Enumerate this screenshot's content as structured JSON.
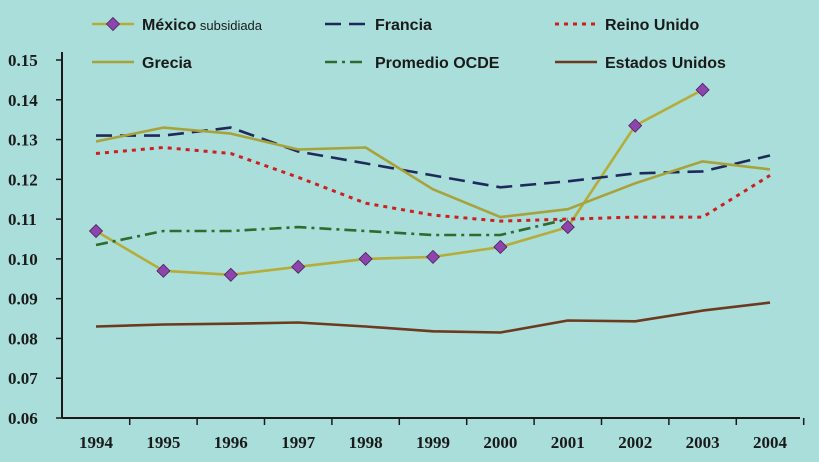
{
  "chart_data": {
    "type": "line",
    "title": "",
    "xlabel": "",
    "ylabel": "",
    "x": [
      "1994",
      "1995",
      "1996",
      "1997",
      "1998",
      "1999",
      "2000",
      "2001",
      "2002",
      "2003",
      "2004"
    ],
    "ylim": [
      0.06,
      0.15
    ],
    "yticks": [
      "0.06",
      "0.07",
      "0.08",
      "0.09",
      "0.10",
      "0.11",
      "0.12",
      "0.13",
      "0.14",
      "0.15"
    ],
    "grid": false,
    "legend": "top",
    "background": "#a9dedb",
    "series": [
      {
        "name": "México",
        "name_suffix": "subsidiada",
        "color": "#b5ad3a",
        "style": "solid",
        "marker": "diamond",
        "marker_color": "#8e44ad",
        "values": [
          0.107,
          0.097,
          0.096,
          0.098,
          0.1,
          0.1005,
          0.103,
          0.108,
          0.1335,
          0.1425,
          null
        ]
      },
      {
        "name": "Francia",
        "color": "#1f2a5a",
        "style": "dash",
        "values": [
          0.131,
          0.131,
          0.133,
          0.127,
          0.124,
          0.121,
          0.118,
          0.1195,
          0.1215,
          0.122,
          0.126
        ]
      },
      {
        "name": "Reino Unido",
        "color": "#cc1f1f",
        "style": "dot",
        "values": [
          0.1265,
          0.128,
          0.1265,
          0.1205,
          0.114,
          0.111,
          0.1095,
          0.11,
          0.1105,
          0.1105,
          0.121
        ]
      },
      {
        "name": "Grecia",
        "color": "#a8a23a",
        "style": "solid",
        "values": [
          0.1295,
          0.133,
          0.1315,
          0.1275,
          0.128,
          0.1175,
          0.1105,
          0.1125,
          0.119,
          0.1245,
          0.1225
        ]
      },
      {
        "name": "Promedio OCDE",
        "color": "#2e6b2e",
        "style": "dashdot",
        "values": [
          0.1035,
          0.107,
          0.107,
          0.108,
          0.107,
          0.106,
          0.106,
          0.11,
          null,
          null,
          null
        ]
      },
      {
        "name": "Estados Unidos",
        "color": "#6b3a1f",
        "style": "solid",
        "values": [
          0.083,
          0.0835,
          0.0837,
          0.084,
          0.083,
          0.0818,
          0.0815,
          0.0845,
          0.0843,
          0.087,
          0.089
        ]
      }
    ]
  }
}
